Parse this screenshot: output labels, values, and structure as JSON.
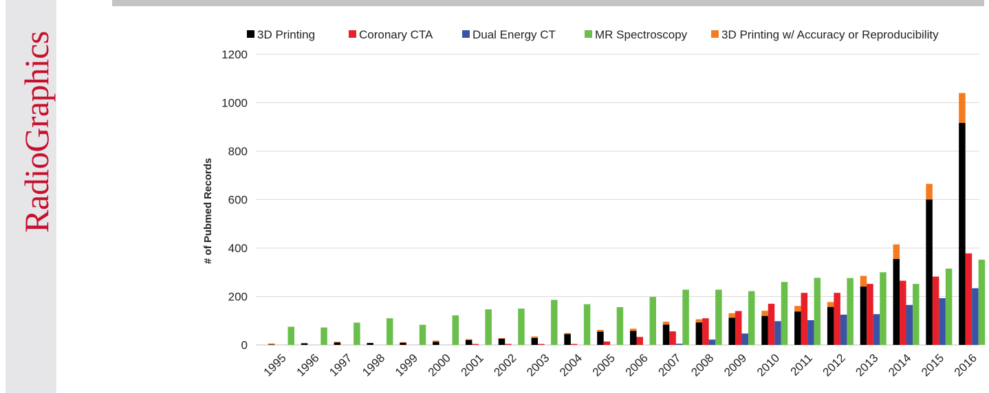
{
  "brand": {
    "name": "RadioGraphics",
    "color": "#c8102e"
  },
  "chart_data": {
    "type": "bar",
    "title": "",
    "xlabel": "",
    "ylabel": "# of Pubmed Records",
    "ylim": [
      0,
      1200
    ],
    "yticks": [
      0,
      200,
      400,
      600,
      800,
      1000,
      1200
    ],
    "grid": true,
    "legend_position": "top",
    "categories": [
      "1995",
      "1996",
      "1997",
      "1998",
      "1999",
      "2000",
      "2001",
      "2002",
      "2003",
      "2004",
      "2005",
      "2006",
      "2007",
      "2008",
      "2009",
      "2010",
      "2011",
      "2012",
      "2013",
      "2014",
      "2015",
      "2016"
    ],
    "series": [
      {
        "name": "3D Printing",
        "color": "#000000",
        "group": "printing",
        "values": [
          2,
          7,
          10,
          8,
          9,
          13,
          20,
          26,
          29,
          45,
          55,
          58,
          84,
          93,
          112,
          120,
          138,
          157,
          241,
          355,
          600,
          917
        ]
      },
      {
        "name": "3D Printing w/ Accuracy or Reproducibility",
        "color": "#f47b20",
        "group": "printing",
        "stacked_on": "3D Printing",
        "values": [
          4,
          0,
          3,
          0,
          3,
          5,
          4,
          2,
          6,
          4,
          7,
          9,
          12,
          13,
          19,
          21,
          23,
          20,
          44,
          60,
          65,
          123
        ]
      },
      {
        "name": "Coronary CTA",
        "color": "#e8202a",
        "group": "cta",
        "values": [
          0,
          0,
          0,
          0,
          0,
          0,
          4,
          4,
          4,
          4,
          14,
          33,
          56,
          110,
          140,
          170,
          215,
          215,
          252,
          265,
          282,
          378
        ]
      },
      {
        "name": "Dual Energy CT",
        "color": "#3a53a4",
        "group": "dect",
        "values": [
          0,
          0,
          0,
          0,
          0,
          0,
          0,
          0,
          0,
          0,
          0,
          0,
          5,
          22,
          47,
          98,
          102,
          125,
          127,
          165,
          193,
          234
        ]
      },
      {
        "name": "MR Spectroscopy",
        "color": "#6abf4b",
        "group": "mrs",
        "values": [
          75,
          72,
          92,
          110,
          83,
          122,
          147,
          150,
          186,
          168,
          156,
          198,
          228,
          228,
          222,
          260,
          277,
          276,
          300,
          252,
          315,
          352
        ]
      }
    ],
    "legend_order": [
      "3D Printing",
      "Coronary CTA",
      "Dual Energy CT",
      "MR Spectroscopy",
      "3D Printing w/ Accuracy or Reproducibility"
    ]
  }
}
